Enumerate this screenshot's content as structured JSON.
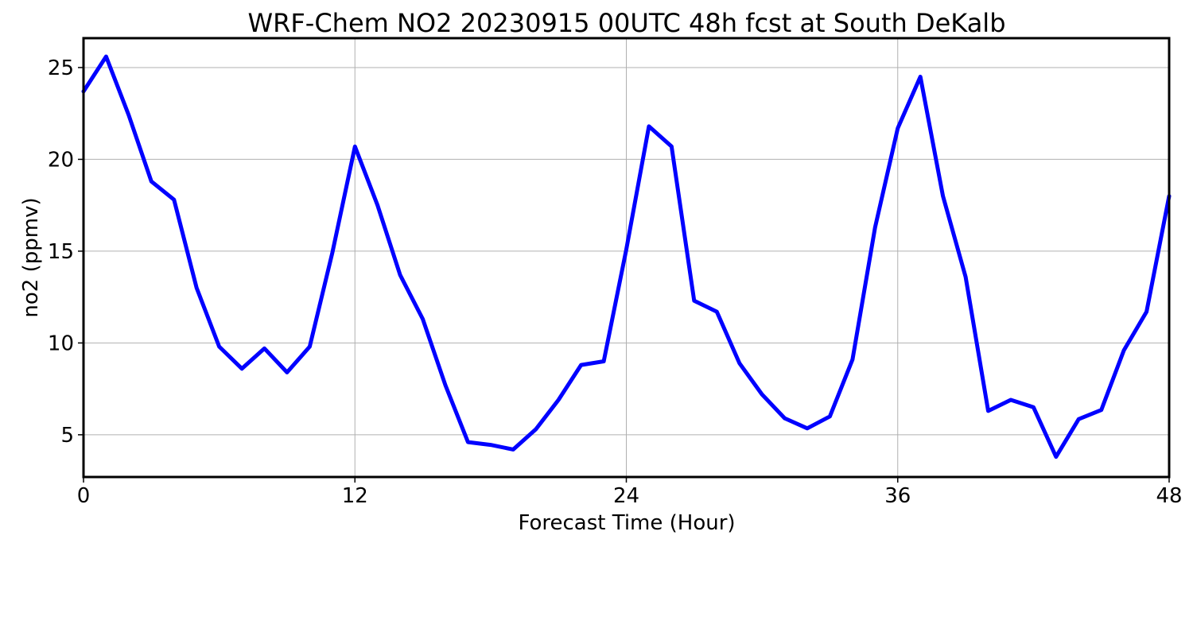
{
  "chart_data": {
    "type": "line",
    "title": "WRF-Chem NO2  20230915 00UTC 48h fcst at South DeKalb",
    "xlabel": "Forecast Time (Hour)",
    "ylabel": "no2  (ppmv)",
    "xlim": [
      0,
      48
    ],
    "ylim": [
      2.7,
      26.6
    ],
    "xticks": [
      0,
      12,
      24,
      36,
      48
    ],
    "yticks": [
      5,
      10,
      15,
      20,
      25
    ],
    "grid": true,
    "series": [
      {
        "color": "#0000ff",
        "x": [
          0,
          1,
          2,
          3,
          4,
          5,
          6,
          7,
          8,
          9,
          10,
          11,
          12,
          13,
          14,
          15,
          16,
          17,
          18,
          19,
          20,
          21,
          22,
          23,
          24,
          25,
          26,
          27,
          28,
          29,
          30,
          31,
          32,
          33,
          34,
          35,
          36,
          37,
          38,
          39,
          40,
          41,
          42,
          43,
          44,
          45,
          46,
          47,
          48
        ],
        "values": [
          23.7,
          25.6,
          22.4,
          18.8,
          17.8,
          13.0,
          9.8,
          8.6,
          9.7,
          8.4,
          9.8,
          14.9,
          20.7,
          17.5,
          13.7,
          11.3,
          7.7,
          4.6,
          4.45,
          4.2,
          5.3,
          6.9,
          8.8,
          9.0,
          15.1,
          21.8,
          20.7,
          12.3,
          11.7,
          8.9,
          7.2,
          5.9,
          5.35,
          6.0,
          9.1,
          16.3,
          21.7,
          24.5,
          18.0,
          13.6,
          6.3,
          6.9,
          6.5,
          3.8,
          5.85,
          6.35,
          9.6,
          11.7,
          18.0
        ]
      }
    ]
  }
}
